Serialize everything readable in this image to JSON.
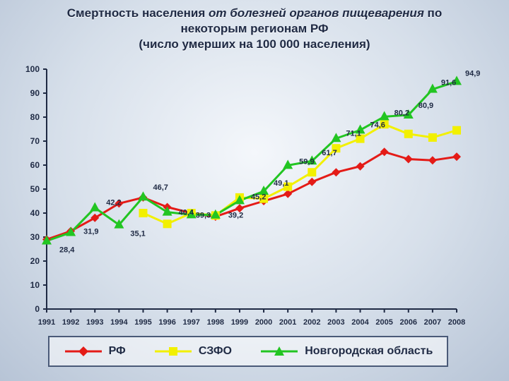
{
  "title": {
    "part1": "Смертность населения ",
    "part2": "от болезней органов пищеварения",
    "part3": " по",
    "line2": "некоторым регионам РФ",
    "line3": "(число умерших на 100 000 населения)"
  },
  "chart_data": {
    "type": "line",
    "title": "Смертность населения от болезней органов пищеварения по некоторым регионам РФ (число умерших на 100 000 населения)",
    "xlabel": "",
    "ylabel": "",
    "categories": [
      "1991",
      "1992",
      "1993",
      "1994",
      "1995",
      "1996",
      "1997",
      "1998",
      "1999",
      "2000",
      "2001",
      "2002",
      "2003",
      "2004",
      "2005",
      "2006",
      "2007",
      "2008"
    ],
    "ylim": [
      0,
      100
    ],
    "yticks": [
      0,
      10,
      20,
      30,
      40,
      50,
      60,
      70,
      80,
      90,
      100
    ],
    "grid": false,
    "legend": "bottom",
    "series": [
      {
        "name": "РФ",
        "color": "#e41b17",
        "marker": "diamond",
        "values": [
          29.0,
          32.5,
          38.0,
          44.0,
          46.5,
          42.5,
          40.0,
          38.5,
          42.0,
          45.0,
          48.0,
          53.0,
          57.0,
          59.5,
          65.5,
          62.5,
          62.0,
          63.5
        ]
      },
      {
        "name": "СЗФО",
        "color": "#f2f000",
        "marker": "square",
        "values": [
          null,
          null,
          null,
          null,
          40.0,
          35.5,
          40.0,
          39.0,
          46.5,
          46.0,
          51.0,
          57.0,
          67.0,
          71.0,
          77.0,
          73.0,
          71.5,
          74.5
        ]
      },
      {
        "name": "Новгородская область",
        "color": "#22c522",
        "marker": "triangle",
        "values": [
          28.4,
          31.9,
          42.2,
          35.1,
          46.7,
          40.4,
          39.3,
          39.2,
          45.2,
          49.1,
          59.9,
          61.7,
          71.1,
          74.6,
          80.2,
          80.9,
          91.6,
          94.9
        ]
      }
    ],
    "data_labels": [
      {
        "series": 2,
        "index": 0,
        "text": "28,4"
      },
      {
        "series": 2,
        "index": 1,
        "text": "31,9"
      },
      {
        "series": 2,
        "index": 2,
        "text": "42,2"
      },
      {
        "series": 2,
        "index": 3,
        "text": "35,1"
      },
      {
        "series": 2,
        "index": 4,
        "text": "46,7"
      },
      {
        "series": 2,
        "index": 5,
        "text": "40,4"
      },
      {
        "series": 2,
        "index": 6,
        "text": "39,3"
      },
      {
        "series": 2,
        "index": 7,
        "text": "39,2"
      },
      {
        "series": 2,
        "index": 8,
        "text": "45,2"
      },
      {
        "series": 2,
        "index": 9,
        "text": "49,1"
      },
      {
        "series": 2,
        "index": 10,
        "text": "59,9"
      },
      {
        "series": 2,
        "index": 11,
        "text": "61,7"
      },
      {
        "series": 2,
        "index": 12,
        "text": "71,1"
      },
      {
        "series": 2,
        "index": 13,
        "text": "74,6"
      },
      {
        "series": 2,
        "index": 14,
        "text": "80,2"
      },
      {
        "series": 2,
        "index": 15,
        "text": "80,9"
      },
      {
        "series": 2,
        "index": 16,
        "text": "91,6"
      },
      {
        "series": 2,
        "index": 17,
        "text": "94,9"
      }
    ]
  }
}
